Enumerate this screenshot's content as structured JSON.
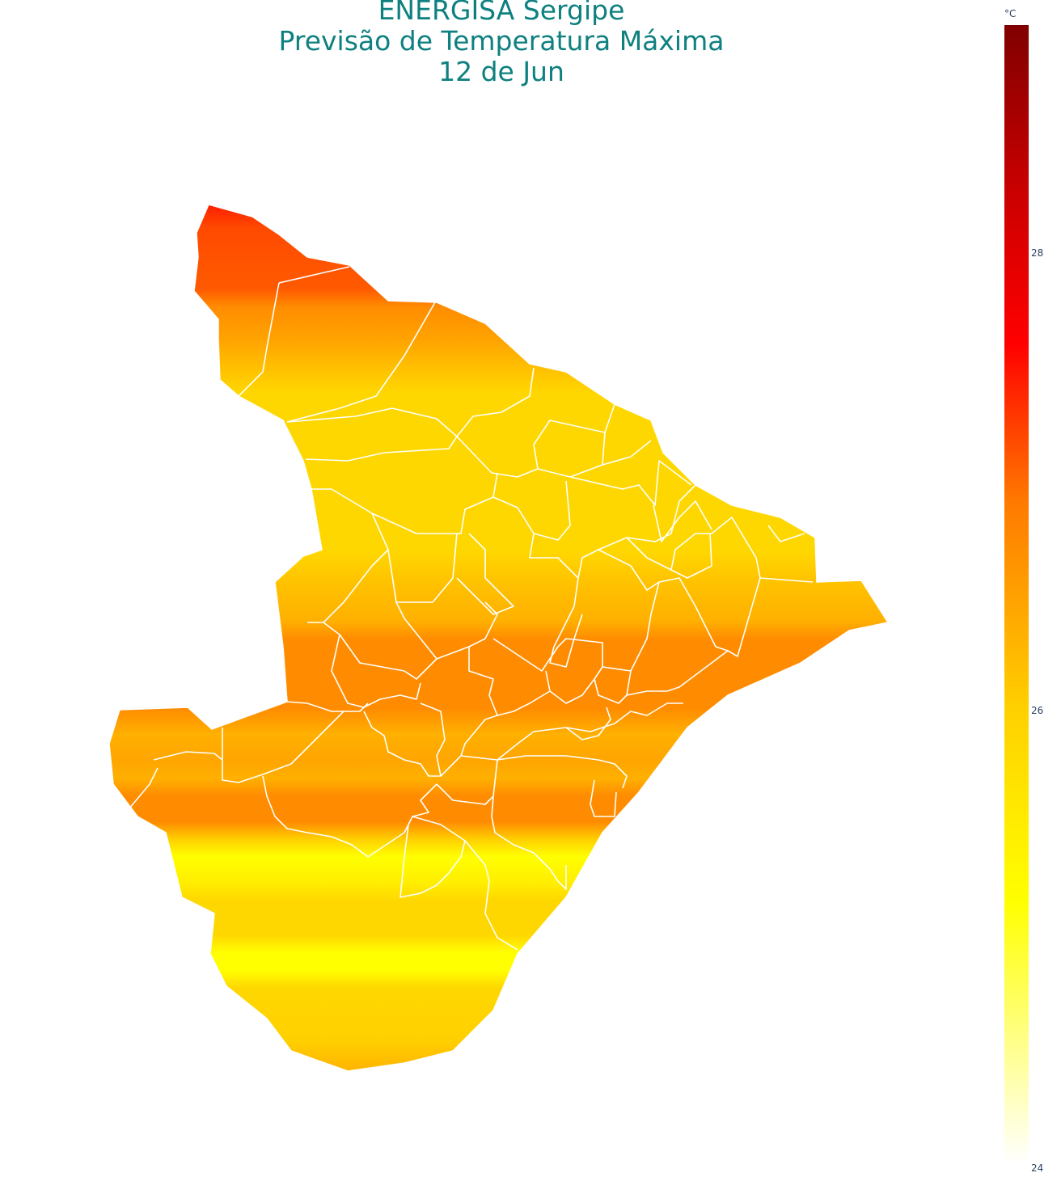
{
  "title": {
    "line1": "ENERGISA Sergipe",
    "line2": "Previsão de Temperatura Máxima",
    "line3": "12 de Jun"
  },
  "colorbar": {
    "unit": "°C",
    "ticks": [
      "28",
      "26",
      "24"
    ],
    "range": [
      24,
      29
    ],
    "colors": [
      "#ffffff",
      "#ffff00",
      "#ffd700",
      "#ff8c00",
      "#ff0000",
      "#800000"
    ]
  },
  "map": {
    "region": "Sergipe",
    "border_color": "#ffffff"
  }
}
